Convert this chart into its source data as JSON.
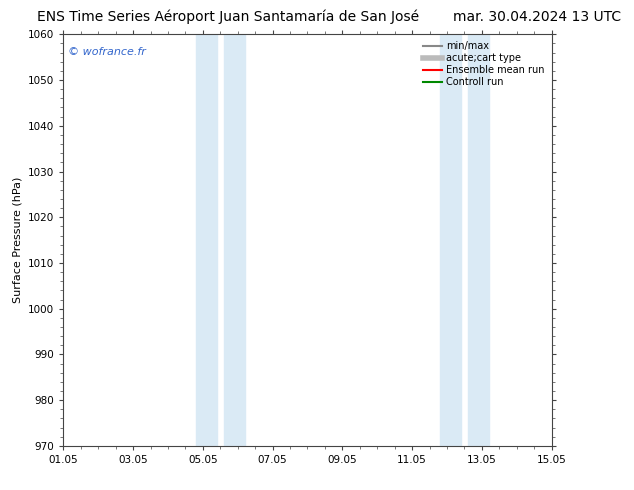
{
  "title": "ENS Time Series Aéroport Juan Santamaría de San José",
  "date_label": "mar. 30.04.2024 13 UTC",
  "ylabel": "Surface Pressure (hPa)",
  "watermark": "© wofrance.fr",
  "ylim": [
    970,
    1060
  ],
  "yticks": [
    970,
    980,
    990,
    1000,
    1010,
    1020,
    1030,
    1040,
    1050,
    1060
  ],
  "xtick_labels": [
    "01.05",
    "03.05",
    "05.05",
    "07.05",
    "09.05",
    "11.05",
    "13.05",
    "15.05"
  ],
  "xtick_positions": [
    0,
    2,
    4,
    6,
    8,
    10,
    12,
    14
  ],
  "xmin": 0,
  "xmax": 14,
  "shaded_bands": [
    {
      "xstart": 3.8,
      "xend": 4.4
    },
    {
      "xstart": 4.6,
      "xend": 5.2
    },
    {
      "xstart": 10.8,
      "xend": 11.4
    },
    {
      "xstart": 11.6,
      "xend": 12.2
    }
  ],
  "background_color": "#ffffff",
  "plot_bg_color": "#ffffff",
  "shade_color": "#daeaf5",
  "title_fontsize": 10,
  "date_fontsize": 10,
  "legend_items": [
    {
      "label": "min/max",
      "color": "#888888",
      "lw": 1.5,
      "style": "-"
    },
    {
      "label": "acute;cart type",
      "color": "#bbbbbb",
      "lw": 4,
      "style": "-"
    },
    {
      "label": "Ensemble mean run",
      "color": "#ff0000",
      "lw": 1.5,
      "style": "-"
    },
    {
      "label": "Controll run",
      "color": "#008800",
      "lw": 1.5,
      "style": "-"
    }
  ],
  "watermark_color": "#3366cc",
  "tick_color": "#444444",
  "spine_color": "#444444"
}
